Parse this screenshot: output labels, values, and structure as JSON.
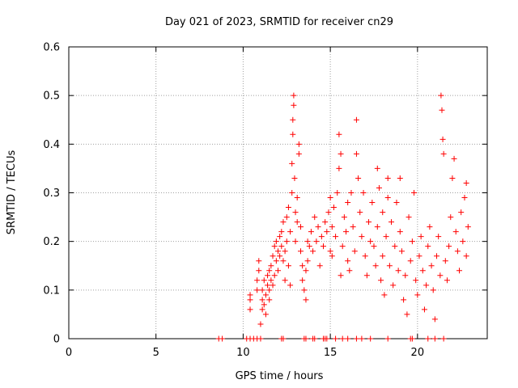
{
  "chart_data": {
    "type": "scatter",
    "title": "Day 021 of 2023, SRMTID for receiver cn29",
    "xlabel": "GPS time / hours",
    "ylabel": "SRMTID / TECUs",
    "xlim": [
      0,
      24
    ],
    "ylim": [
      0,
      0.6
    ],
    "x_ticks": [
      "0",
      "5",
      "10",
      "15",
      "20"
    ],
    "y_ticks": [
      "0",
      "0.1",
      "0.2",
      "0.3",
      "0.4",
      "0.5",
      "0.6"
    ],
    "x_tick_values": [
      0,
      5,
      10,
      15,
      20
    ],
    "y_tick_values": [
      0,
      0.1,
      0.2,
      0.3,
      0.4,
      0.5,
      0.6
    ],
    "grid": true,
    "marker": "+",
    "colors": {
      "points": "#ff0000",
      "grid": "#a0a0a0",
      "axes": "#000000"
    },
    "series": [
      {
        "points": [
          [
            8.6,
            0
          ],
          [
            8.8,
            0
          ],
          [
            10.2,
            0
          ],
          [
            10.4,
            0
          ],
          [
            10.6,
            0
          ],
          [
            10.8,
            0
          ],
          [
            11.0,
            0
          ],
          [
            12.2,
            0
          ],
          [
            12.3,
            0
          ],
          [
            13.5,
            0
          ],
          [
            13.6,
            0
          ],
          [
            14.0,
            0
          ],
          [
            14.1,
            0
          ],
          [
            14.6,
            0
          ],
          [
            14.7,
            0
          ],
          [
            14.8,
            0
          ],
          [
            15.3,
            0
          ],
          [
            15.7,
            0
          ],
          [
            16.0,
            0
          ],
          [
            16.5,
            0
          ],
          [
            16.8,
            0
          ],
          [
            17.3,
            0
          ],
          [
            18.3,
            0
          ],
          [
            19.6,
            0
          ],
          [
            19.7,
            0
          ],
          [
            20.6,
            0
          ],
          [
            21.0,
            0
          ],
          [
            21.5,
            0
          ],
          [
            10.4,
            0.06
          ],
          [
            10.4,
            0.08
          ],
          [
            10.4,
            0.09
          ],
          [
            10.8,
            0.1
          ],
          [
            10.8,
            0.12
          ],
          [
            10.9,
            0.14
          ],
          [
            10.9,
            0.16
          ],
          [
            11.0,
            0.03
          ],
          [
            11.1,
            0.06
          ],
          [
            11.1,
            0.08
          ],
          [
            11.1,
            0.1
          ],
          [
            11.2,
            0.07
          ],
          [
            11.2,
            0.12
          ],
          [
            11.3,
            0.05
          ],
          [
            11.3,
            0.09
          ],
          [
            11.4,
            0.11
          ],
          [
            11.4,
            0.13
          ],
          [
            11.5,
            0.08
          ],
          [
            11.5,
            0.1
          ],
          [
            11.5,
            0.14
          ],
          [
            11.6,
            0.12
          ],
          [
            11.6,
            0.15
          ],
          [
            11.7,
            0.17
          ],
          [
            11.7,
            0.11
          ],
          [
            11.8,
            0.13
          ],
          [
            11.8,
            0.19
          ],
          [
            11.9,
            0.16
          ],
          [
            11.9,
            0.2
          ],
          [
            12.0,
            0.18
          ],
          [
            12.0,
            0.14
          ],
          [
            12.1,
            0.21
          ],
          [
            12.1,
            0.17
          ],
          [
            12.2,
            0.19
          ],
          [
            12.2,
            0.22
          ],
          [
            12.3,
            0.16
          ],
          [
            12.3,
            0.24
          ],
          [
            12.4,
            0.18
          ],
          [
            12.4,
            0.12
          ],
          [
            12.5,
            0.2
          ],
          [
            12.5,
            0.25
          ],
          [
            12.6,
            0.15
          ],
          [
            12.6,
            0.27
          ],
          [
            12.7,
            0.11
          ],
          [
            12.7,
            0.22
          ],
          [
            12.8,
            0.3
          ],
          [
            12.8,
            0.36
          ],
          [
            12.85,
            0.42
          ],
          [
            12.85,
            0.45
          ],
          [
            12.9,
            0.5
          ],
          [
            12.9,
            0.48
          ],
          [
            12.95,
            0.33
          ],
          [
            13.0,
            0.26
          ],
          [
            13.0,
            0.2
          ],
          [
            13.1,
            0.24
          ],
          [
            13.1,
            0.29
          ],
          [
            13.2,
            0.38
          ],
          [
            13.2,
            0.4
          ],
          [
            13.3,
            0.23
          ],
          [
            13.3,
            0.18
          ],
          [
            13.4,
            0.15
          ],
          [
            13.4,
            0.12
          ],
          [
            13.5,
            0.1
          ],
          [
            13.6,
            0.08
          ],
          [
            13.6,
            0.14
          ],
          [
            13.7,
            0.2
          ],
          [
            13.7,
            0.16
          ],
          [
            13.8,
            0.19
          ],
          [
            13.9,
            0.22
          ],
          [
            14.0,
            0.18
          ],
          [
            14.1,
            0.25
          ],
          [
            14.2,
            0.2
          ],
          [
            14.3,
            0.23
          ],
          [
            14.4,
            0.15
          ],
          [
            14.5,
            0.21
          ],
          [
            14.6,
            0.19
          ],
          [
            14.7,
            0.24
          ],
          [
            14.8,
            0.22
          ],
          [
            14.9,
            0.26
          ],
          [
            15.0,
            0.18
          ],
          [
            15.0,
            0.29
          ],
          [
            15.1,
            0.17
          ],
          [
            15.1,
            0.23
          ],
          [
            15.2,
            0.27
          ],
          [
            15.3,
            0.21
          ],
          [
            15.4,
            0.3
          ],
          [
            15.5,
            0.35
          ],
          [
            15.5,
            0.42
          ],
          [
            15.6,
            0.38
          ],
          [
            15.6,
            0.13
          ],
          [
            15.7,
            0.19
          ],
          [
            15.8,
            0.25
          ],
          [
            15.9,
            0.22
          ],
          [
            16.0,
            0.28
          ],
          [
            16.0,
            0.16
          ],
          [
            16.1,
            0.14
          ],
          [
            16.2,
            0.3
          ],
          [
            16.3,
            0.23
          ],
          [
            16.4,
            0.18
          ],
          [
            16.5,
            0.38
          ],
          [
            16.5,
            0.45
          ],
          [
            16.6,
            0.33
          ],
          [
            16.7,
            0.26
          ],
          [
            16.8,
            0.21
          ],
          [
            16.9,
            0.3
          ],
          [
            17.0,
            0.17
          ],
          [
            17.1,
            0.13
          ],
          [
            17.2,
            0.24
          ],
          [
            17.3,
            0.2
          ],
          [
            17.4,
            0.28
          ],
          [
            17.5,
            0.19
          ],
          [
            17.6,
            0.15
          ],
          [
            17.7,
            0.23
          ],
          [
            17.7,
            0.35
          ],
          [
            17.8,
            0.31
          ],
          [
            17.9,
            0.12
          ],
          [
            18.0,
            0.26
          ],
          [
            18.0,
            0.17
          ],
          [
            18.1,
            0.09
          ],
          [
            18.2,
            0.21
          ],
          [
            18.3,
            0.33
          ],
          [
            18.3,
            0.29
          ],
          [
            18.4,
            0.15
          ],
          [
            18.5,
            0.24
          ],
          [
            18.6,
            0.11
          ],
          [
            18.7,
            0.19
          ],
          [
            18.8,
            0.28
          ],
          [
            18.9,
            0.14
          ],
          [
            19.0,
            0.33
          ],
          [
            19.0,
            0.22
          ],
          [
            19.1,
            0.18
          ],
          [
            19.2,
            0.08
          ],
          [
            19.3,
            0.13
          ],
          [
            19.4,
            0.05
          ],
          [
            19.5,
            0.25
          ],
          [
            19.6,
            0.16
          ],
          [
            19.7,
            0.2
          ],
          [
            19.8,
            0.3
          ],
          [
            19.9,
            0.12
          ],
          [
            20.0,
            0.09
          ],
          [
            20.1,
            0.17
          ],
          [
            20.2,
            0.21
          ],
          [
            20.3,
            0.14
          ],
          [
            20.4,
            0.06
          ],
          [
            20.5,
            0.11
          ],
          [
            20.6,
            0.19
          ],
          [
            20.7,
            0.23
          ],
          [
            20.8,
            0.15
          ],
          [
            20.9,
            0.1
          ],
          [
            21.0,
            0.04
          ],
          [
            21.1,
            0.17
          ],
          [
            21.2,
            0.21
          ],
          [
            21.3,
            0.13
          ],
          [
            21.35,
            0.5
          ],
          [
            21.4,
            0.47
          ],
          [
            21.45,
            0.41
          ],
          [
            21.5,
            0.38
          ],
          [
            21.6,
            0.16
          ],
          [
            21.7,
            0.12
          ],
          [
            21.8,
            0.19
          ],
          [
            21.9,
            0.25
          ],
          [
            22.0,
            0.33
          ],
          [
            22.1,
            0.37
          ],
          [
            22.2,
            0.22
          ],
          [
            22.3,
            0.18
          ],
          [
            22.4,
            0.14
          ],
          [
            22.5,
            0.26
          ],
          [
            22.6,
            0.2
          ],
          [
            22.7,
            0.29
          ],
          [
            22.8,
            0.32
          ],
          [
            22.8,
            0.17
          ],
          [
            22.9,
            0.23
          ]
        ]
      }
    ]
  }
}
